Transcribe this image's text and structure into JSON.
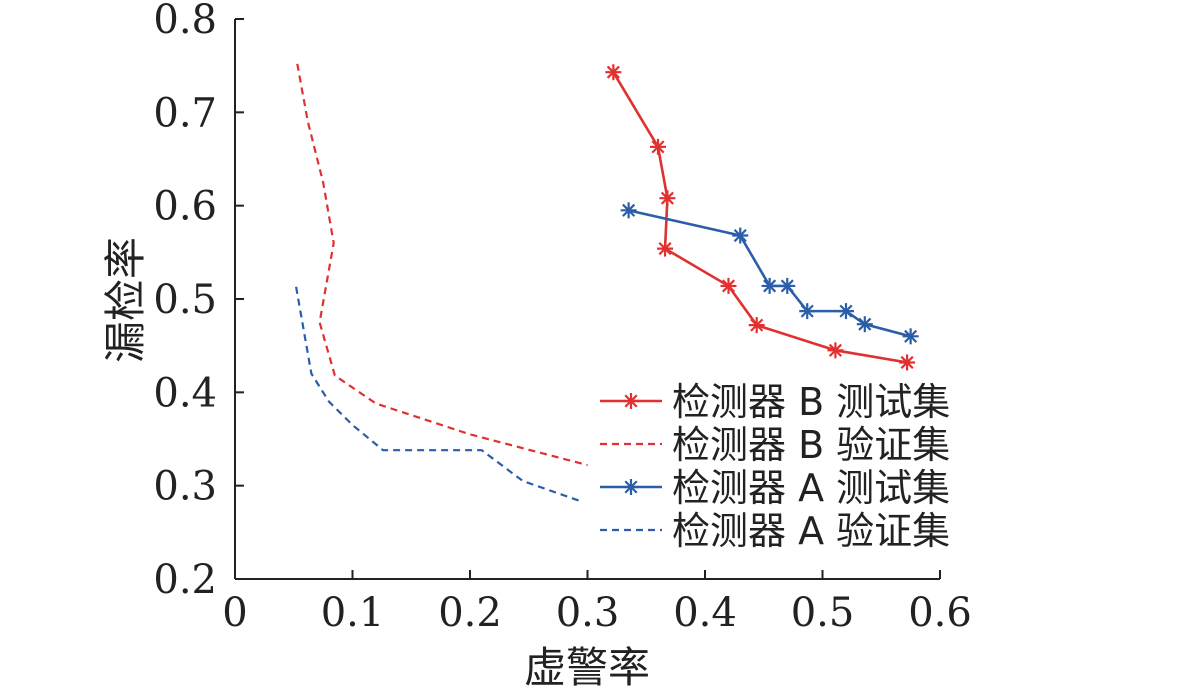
{
  "chart_data": {
    "type": "line",
    "title": "",
    "xlabel": "虚警率",
    "ylabel": "漏检率",
    "xlim": [
      0,
      0.6
    ],
    "ylim": [
      0.2,
      0.8
    ],
    "xticks": [
      "0",
      "0.1",
      "0.2",
      "0.3",
      "0.4",
      "0.5",
      "0.6"
    ],
    "yticks": [
      "0.2",
      "0.3",
      "0.4",
      "0.5",
      "0.6",
      "0.7",
      "0.8"
    ],
    "grid": false,
    "legend_position": "lower-right",
    "series": [
      {
        "name": "检测器 B 测试集",
        "color": "#e03030",
        "line_style": "solid",
        "marker": "asterisk",
        "x": [
          0.322,
          0.36,
          0.368,
          0.366,
          0.42,
          0.444,
          0.511,
          0.572
        ],
        "y": [
          0.743,
          0.663,
          0.608,
          0.554,
          0.514,
          0.472,
          0.445,
          0.432
        ]
      },
      {
        "name": "检测器 B 验证集",
        "color": "#e03030",
        "line_style": "dashed",
        "marker": "none",
        "x": [
          0.053,
          0.062,
          0.075,
          0.084,
          0.072,
          0.085,
          0.12,
          0.2,
          0.3
        ],
        "y": [
          0.752,
          0.69,
          0.625,
          0.56,
          0.475,
          0.418,
          0.388,
          0.355,
          0.322
        ]
      },
      {
        "name": "检测器 A 测试集",
        "color": "#2b5ea8",
        "line_style": "solid",
        "marker": "asterisk",
        "x": [
          0.335,
          0.43,
          0.455,
          0.47,
          0.487,
          0.52,
          0.536,
          0.575
        ],
        "y": [
          0.595,
          0.568,
          0.514,
          0.514,
          0.487,
          0.487,
          0.473,
          0.46
        ]
      },
      {
        "name": "检测器 A 验证集",
        "color": "#2b5ea8",
        "line_style": "dashed",
        "marker": "none",
        "x": [
          0.052,
          0.058,
          0.065,
          0.08,
          0.1,
          0.126,
          0.21,
          0.245,
          0.295
        ],
        "y": [
          0.513,
          0.47,
          0.42,
          0.39,
          0.365,
          0.338,
          0.338,
          0.305,
          0.283
        ]
      }
    ]
  }
}
